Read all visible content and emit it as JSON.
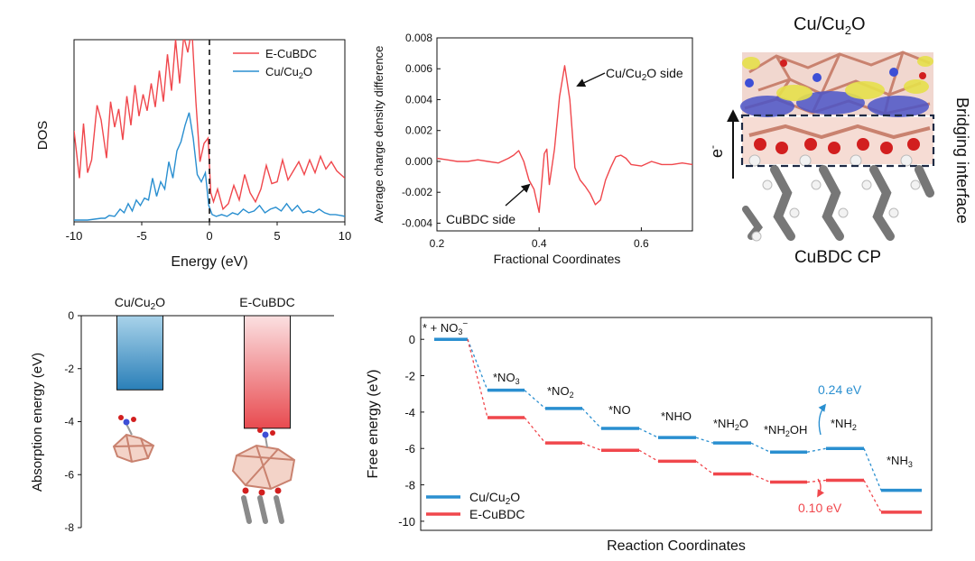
{
  "colors": {
    "red": "#f0474c",
    "blue": "#2a8fd0",
    "axis": "#111111",
    "cu_atom": "#c9826f",
    "o_atom": "#d21f1f",
    "n_atom": "#3d4fd6",
    "c_atom": "#808080",
    "h_atom": "#f2f2f2",
    "density_yellow": "#e6e04a",
    "density_blue": "#4b55c8"
  },
  "chart_data": [
    {
      "id": "dos",
      "type": "line",
      "title": "",
      "xlabel": "Energy (eV)",
      "ylabel": "DOS",
      "xlim": [
        -10,
        10
      ],
      "ylim": [
        0,
        10
      ],
      "xticks": [
        "-10",
        "-5",
        "0",
        "5",
        "10"
      ],
      "fermi_level": 0,
      "legend": [
        "E-CuBDC",
        "Cu/Cu2O"
      ],
      "series": [
        {
          "name": "E-CuBDC",
          "color": "red",
          "x": [
            -10,
            -9.6,
            -9.3,
            -9.0,
            -8.7,
            -8.3,
            -8.0,
            -7.6,
            -7.3,
            -7.0,
            -6.7,
            -6.4,
            -6.1,
            -5.8,
            -5.5,
            -5.2,
            -4.9,
            -4.6,
            -4.3,
            -4.0,
            -3.7,
            -3.4,
            -3.1,
            -2.8,
            -2.5,
            -2.2,
            -1.9,
            -1.6,
            -1.3,
            -1.0,
            -0.7,
            -0.4,
            -0.1,
            0.1,
            0.3,
            0.6,
            1.0,
            1.4,
            1.8,
            2.2,
            2.6,
            3.0,
            3.4,
            3.8,
            4.2,
            4.6,
            5.0,
            5.4,
            5.8,
            6.2,
            6.6,
            7.0,
            7.4,
            7.8,
            8.2,
            8.6,
            9.0,
            9.4,
            9.7,
            10
          ],
          "y": [
            5.0,
            2.4,
            5.4,
            2.7,
            3.4,
            6.4,
            5.6,
            3.5,
            6.6,
            5.2,
            6.2,
            4.5,
            6.9,
            5.3,
            7.5,
            5.8,
            7.0,
            6.1,
            7.6,
            6.3,
            8.3,
            6.6,
            9.2,
            7.2,
            10.0,
            7.6,
            10.2,
            9.3,
            10.6,
            6.6,
            3.3,
            4.3,
            4.6,
            1.6,
            1.1,
            1.8,
            0.7,
            1.0,
            2.0,
            1.2,
            2.6,
            1.6,
            1.1,
            1.8,
            3.1,
            2.1,
            2.2,
            3.4,
            2.3,
            2.8,
            3.3,
            2.6,
            3.4,
            2.7,
            3.6,
            2.9,
            3.3,
            2.8,
            2.6,
            2.4
          ]
        },
        {
          "name": "Cu/Cu2O",
          "color": "blue",
          "x": [
            -10,
            -9.5,
            -9.0,
            -8.5,
            -8.0,
            -7.7,
            -7.4,
            -7.0,
            -6.6,
            -6.3,
            -6.0,
            -5.7,
            -5.4,
            -5.1,
            -4.8,
            -4.5,
            -4.2,
            -3.9,
            -3.6,
            -3.3,
            -3.0,
            -2.7,
            -2.4,
            -2.1,
            -1.8,
            -1.5,
            -1.2,
            -0.9,
            -0.6,
            -0.3,
            -0.05,
            0.2,
            0.5,
            0.9,
            1.3,
            1.7,
            2.1,
            2.5,
            2.9,
            3.3,
            3.7,
            4.1,
            4.5,
            4.9,
            5.3,
            5.7,
            6.1,
            6.5,
            6.9,
            7.3,
            7.7,
            8.1,
            8.5,
            8.9,
            9.3,
            9.7,
            10
          ],
          "y": [
            0.1,
            0.1,
            0.1,
            0.15,
            0.2,
            0.2,
            0.35,
            0.3,
            0.7,
            0.5,
            1.0,
            0.6,
            1.2,
            0.9,
            1.3,
            1.2,
            2.4,
            1.4,
            2.2,
            1.8,
            3.3,
            2.4,
            3.9,
            4.4,
            5.3,
            6.0,
            4.6,
            2.6,
            2.2,
            2.7,
            0.9,
            0.4,
            0.3,
            0.4,
            0.3,
            0.5,
            0.4,
            0.7,
            0.5,
            0.6,
            0.9,
            0.5,
            0.7,
            0.8,
            0.6,
            1.0,
            0.6,
            0.9,
            0.5,
            0.6,
            0.5,
            0.7,
            0.5,
            0.4,
            0.4,
            0.35,
            0.3
          ]
        }
      ]
    },
    {
      "id": "charge",
      "type": "line",
      "title": "",
      "xlabel": "Fractional Coordinates",
      "ylabel": "Average charge density difference",
      "xlim": [
        0.2,
        0.7
      ],
      "ylim": [
        -0.0045,
        0.008
      ],
      "xticks": [
        "0.2",
        "0.4",
        "0.6"
      ],
      "yticks": [
        "-0.004",
        "-0.002",
        "0.000",
        "0.002",
        "0.004",
        "0.006",
        "0.008"
      ],
      "annotations": [
        "Cu/Cu2O side",
        "CuBDC side"
      ],
      "series": [
        {
          "name": "charge difference",
          "color": "red",
          "x": [
            0.2,
            0.22,
            0.24,
            0.26,
            0.28,
            0.3,
            0.32,
            0.34,
            0.35,
            0.36,
            0.37,
            0.38,
            0.39,
            0.4,
            0.41,
            0.415,
            0.42,
            0.43,
            0.44,
            0.45,
            0.46,
            0.47,
            0.48,
            0.49,
            0.5,
            0.51,
            0.52,
            0.53,
            0.54,
            0.55,
            0.56,
            0.57,
            0.58,
            0.6,
            0.62,
            0.64,
            0.66,
            0.68,
            0.7
          ],
          "y": [
            0.0002,
            0.0001,
            0.0,
            0.0,
            0.0001,
            0.0,
            -0.0001,
            0.0002,
            0.0004,
            0.0007,
            0.0,
            -0.0012,
            -0.0018,
            -0.0033,
            0.0005,
            0.0008,
            -0.0015,
            0.0008,
            0.0042,
            0.0062,
            0.004,
            -0.0004,
            -0.0012,
            -0.0016,
            -0.0021,
            -0.0028,
            -0.0025,
            -0.0012,
            -0.0004,
            0.0003,
            0.0004,
            0.0002,
            -0.0002,
            -0.0003,
            0.0,
            -0.0002,
            -0.0002,
            -0.0001,
            -0.0002
          ]
        }
      ]
    },
    {
      "id": "absorption",
      "type": "bar",
      "title": "",
      "xlabel": "",
      "ylabel": "Absorption energy (eV)",
      "ylim": [
        -8,
        0
      ],
      "yticks": [
        "0",
        "-2",
        "-4",
        "-6",
        "-8"
      ],
      "categories": [
        "Cu/Cu2O",
        "E-CuBDC"
      ],
      "values": [
        -2.8,
        -4.25
      ],
      "colors": [
        "blue",
        "red"
      ]
    },
    {
      "id": "free_energy",
      "type": "line",
      "title": "",
      "xlabel": "Reaction Coordinates",
      "ylabel": "Free energy (eV)",
      "ylim": [
        -10.5,
        1.2
      ],
      "yticks": [
        "0",
        "-2",
        "-4",
        "-6",
        "-8",
        "-10"
      ],
      "legend": [
        "Cu/Cu2O",
        "E-CuBDC"
      ],
      "step_labels": [
        "* + NO3⁻",
        "*NO3",
        "*NO2",
        "*NO",
        "*NHO",
        "*NH2O",
        "*NH2OH",
        "*NH2",
        "*NH3"
      ],
      "barrier_labels": [
        "0.24 eV",
        "0.10 eV"
      ],
      "series": [
        {
          "name": "Cu/Cu2O",
          "color": "blue",
          "values": [
            0.0,
            -2.8,
            -3.8,
            -4.9,
            -5.4,
            -5.7,
            -6.2,
            -6.0,
            -8.3
          ]
        },
        {
          "name": "E-CuBDC",
          "color": "red",
          "values": [
            0.0,
            -4.3,
            -5.7,
            -6.1,
            -6.7,
            -7.4,
            -7.85,
            -7.75,
            -9.5
          ]
        }
      ]
    }
  ],
  "structure_panel": {
    "top_label": "Cu/Cu2O",
    "bottom_label": "CuBDC CP",
    "side_label": "Bridging interface",
    "electron_label": "e-"
  }
}
